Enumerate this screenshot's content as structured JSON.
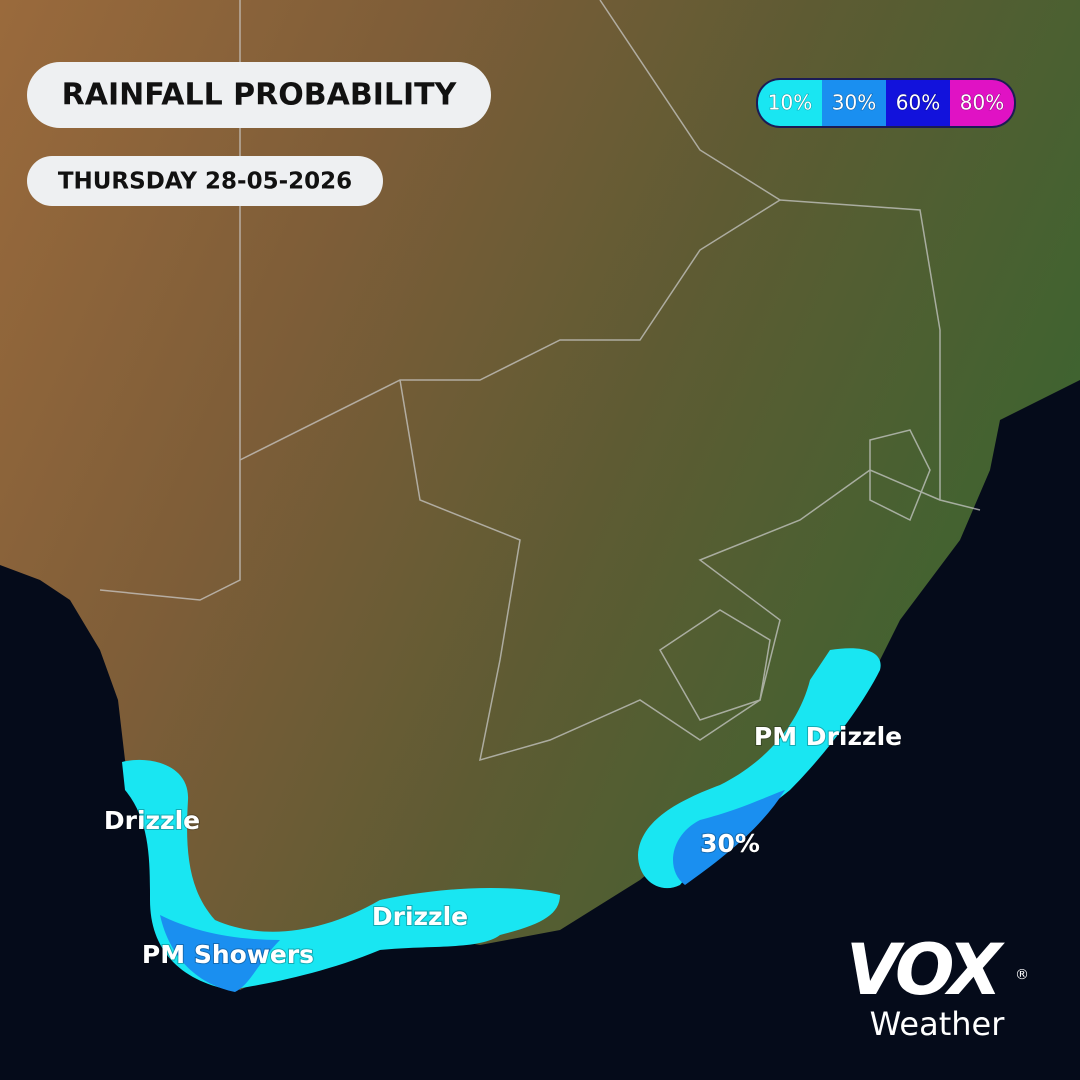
{
  "header": {
    "title": "RAINFALL PROBABILITY",
    "date": "THURSDAY 28-05-2026"
  },
  "legend": [
    {
      "label": "10%",
      "color": "#19e6f2"
    },
    {
      "label": "30%",
      "color": "#1a8ff0"
    },
    {
      "label": "60%",
      "color": "#1212dc"
    },
    {
      "label": "80%",
      "color": "#e012c4"
    }
  ],
  "annotations": [
    "Drizzle",
    "PM Showers",
    "Drizzle",
    "PM Drizzle",
    "30%"
  ],
  "logo": {
    "mark": "VOX",
    "text": "Weather",
    "registered": "®"
  }
}
